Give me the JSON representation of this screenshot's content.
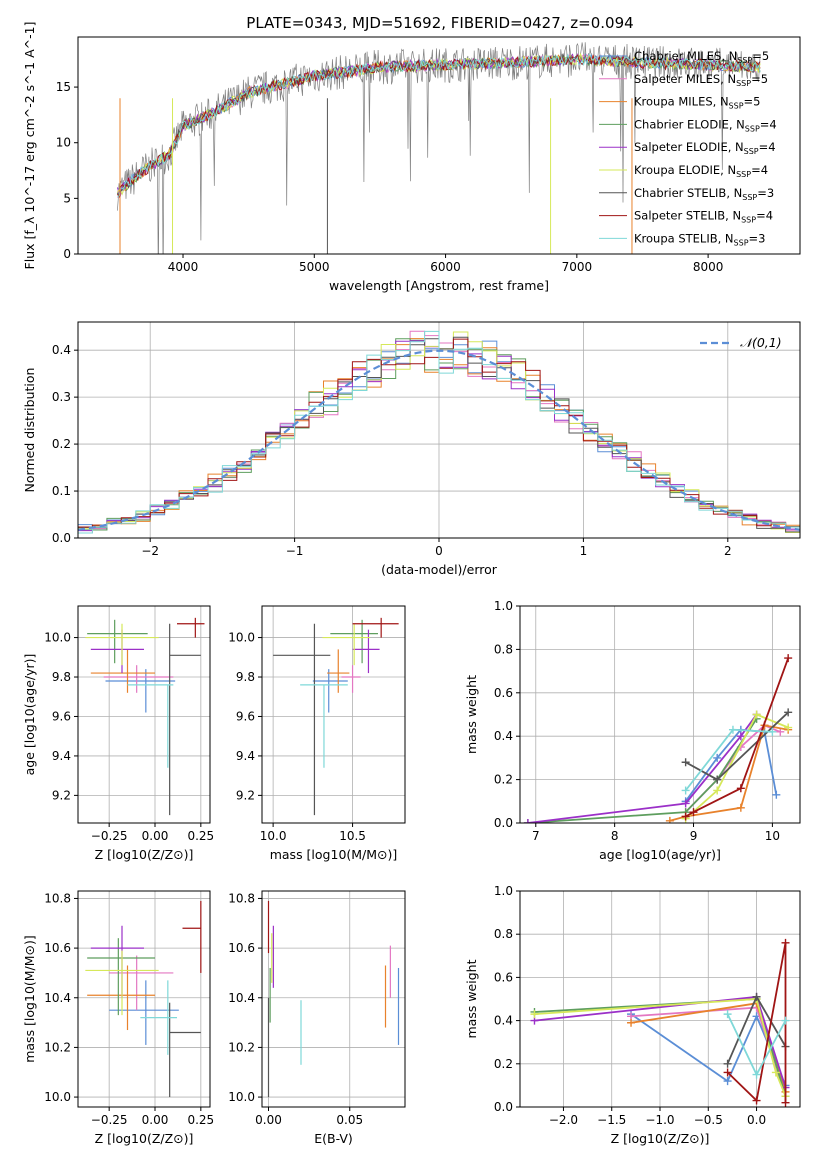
{
  "figure_title": "PLATE=0343, MJD=51692, FIBERID=0427, z=0.094",
  "colors": {
    "Chabrier MILES": "#5b8ed6",
    "Salpeter MILES": "#e377c2",
    "Kroupa MILES": "#e8822c",
    "Chabrier ELODIE": "#5e9e5e",
    "Salpeter ELODIE": "#9b30c8",
    "Kroupa ELODIE": "#d6e85a",
    "Chabrier STELIB": "#555555",
    "Salpeter STELIB": "#a01515",
    "Kroupa STELIB": "#7fd8d8",
    "gaussian": "#5b8ed6"
  },
  "chart_data": [
    {
      "id": "spectrum",
      "type": "line",
      "title": "PLATE=0343, MJD=51692, FIBERID=0427, z=0.094",
      "xlabel": "wavelength [Angstrom, rest frame]",
      "ylabel": "Flux [f_λ 10^-17 erg cm^-2 s^-1 A^-1]",
      "xlim": [
        3200,
        8700
      ],
      "ylim": [
        0,
        19.5
      ],
      "xticks": [
        4000,
        5000,
        6000,
        7000,
        8000
      ],
      "yticks": [
        0,
        5,
        10,
        15
      ],
      "grid": false,
      "legend_position": "top-right",
      "legend": [
        "Chabrier MILES, N_SSP=5",
        "Salpeter MILES, N_SSP=5",
        "Kroupa MILES, N_SSP=5",
        "Chabrier ELODIE, N_SSP=4",
        "Salpeter ELODIE, N_SSP=4",
        "Kroupa ELODIE, N_SSP=4",
        "Chabrier STELIB, N_SSP=3",
        "Salpeter STELIB, N_SSP=4",
        "Kroupa STELIB, N_SSP=3"
      ],
      "continuum": {
        "x": [
          3500,
          3700,
          3900,
          4000,
          4200,
          4500,
          5000,
          5500,
          6000,
          6500,
          7000,
          7500,
          8000,
          8400
        ],
        "y": [
          5.5,
          7.5,
          9.0,
          11.5,
          12.5,
          14.5,
          16.0,
          16.8,
          17.0,
          17.2,
          17.5,
          17.2,
          17.0,
          16.8
        ]
      }
    },
    {
      "id": "residuals",
      "type": "histogram",
      "xlabel": "(data-model)/error",
      "ylabel": "Normed distribution",
      "xlim": [
        -2.5,
        2.5
      ],
      "ylim": [
        0,
        0.46
      ],
      "xticks": [
        -2,
        -1,
        0,
        1,
        2
      ],
      "yticks": [
        0.0,
        0.1,
        0.2,
        0.3,
        0.4
      ],
      "grid": true,
      "legend_position": "top-right",
      "legend": [
        "𝒩(0,1)"
      ],
      "bin_width": 0.1,
      "curve": "standard normal density"
    },
    {
      "id": "age-vs-Z",
      "type": "errorbar",
      "xlabel": "Z [log10(Z/Z⊙)]",
      "ylabel": "age [log10(age/yr)]",
      "xlim": [
        -0.42,
        0.3
      ],
      "ylim": [
        9.06,
        10.16
      ],
      "xticks": [
        -0.25,
        0.0,
        0.25
      ],
      "yticks": [
        9.2,
        9.4,
        9.6,
        9.8,
        10.0
      ],
      "grid": true,
      "points": [
        {
          "model": "Chabrier MILES",
          "x": -0.05,
          "xerr": [
            0.22,
            0.16
          ],
          "y": 9.78,
          "yerr": [
            0.16,
            0.06
          ]
        },
        {
          "model": "Salpeter MILES",
          "x": -0.1,
          "xerr": [
            0.18,
            0.2
          ],
          "y": 9.8,
          "yerr": [
            0.08,
            0.06
          ]
        },
        {
          "model": "Kroupa MILES",
          "x": -0.15,
          "xerr": [
            0.2,
            0.15
          ],
          "y": 9.82,
          "yerr": [
            0.1,
            0.12
          ]
        },
        {
          "model": "Chabrier ELODIE",
          "x": -0.22,
          "xerr": [
            0.15,
            0.18
          ],
          "y": 10.02,
          "yerr": [
            0.15,
            0.07
          ]
        },
        {
          "model": "Salpeter ELODIE",
          "x": -0.18,
          "xerr": [
            0.17,
            0.12
          ],
          "y": 9.94,
          "yerr": [
            0.12,
            0.1
          ]
        },
        {
          "model": "Kroupa ELODIE",
          "x": -0.18,
          "xerr": [
            0.2,
            0.2
          ],
          "y": 10.0,
          "yerr": [
            0.14,
            0.07
          ]
        },
        {
          "model": "Chabrier STELIB",
          "x": 0.08,
          "xerr": [
            0.0,
            0.17
          ],
          "y": 9.91,
          "yerr": [
            0.81,
            0.16
          ]
        },
        {
          "model": "Salpeter STELIB",
          "x": 0.22,
          "xerr": [
            0.1,
            0.05
          ],
          "y": 10.07,
          "yerr": [
            0.07,
            0.03
          ]
        },
        {
          "model": "Kroupa STELIB",
          "x": 0.07,
          "xerr": [
            0.22,
            0.03
          ],
          "y": 9.76,
          "yerr": [
            0.42,
            0.0
          ]
        }
      ]
    },
    {
      "id": "age-vs-mass",
      "type": "errorbar",
      "xlabel": "mass [log10(M/M⊙)]",
      "ylabel": "",
      "xlim": [
        9.93,
        10.83
      ],
      "ylim": [
        9.06,
        10.16
      ],
      "xticks": [
        10.0,
        10.5
      ],
      "yticks": [
        9.2,
        9.4,
        9.6,
        9.8,
        10.0
      ],
      "grid": true,
      "points": [
        {
          "model": "Chabrier MILES",
          "x": 10.35,
          "xerr": [
            0.1,
            0.12
          ],
          "y": 9.78,
          "yerr": [
            0.16,
            0.06
          ]
        },
        {
          "model": "Salpeter MILES",
          "x": 10.5,
          "xerr": [
            0.07,
            0.05
          ],
          "y": 9.8,
          "yerr": [
            0.08,
            0.06
          ]
        },
        {
          "model": "Kroupa MILES",
          "x": 10.41,
          "xerr": [
            0.07,
            0.07
          ],
          "y": 9.82,
          "yerr": [
            0.1,
            0.12
          ]
        },
        {
          "model": "Chabrier ELODIE",
          "x": 10.56,
          "xerr": [
            0.2,
            0.1
          ],
          "y": 10.02,
          "yerr": [
            0.15,
            0.07
          ]
        },
        {
          "model": "Salpeter ELODIE",
          "x": 10.6,
          "xerr": [
            0.1,
            0.07
          ],
          "y": 9.94,
          "yerr": [
            0.12,
            0.1
          ]
        },
        {
          "model": "Kroupa ELODIE",
          "x": 10.51,
          "xerr": [
            0.2,
            0.1
          ],
          "y": 10.0,
          "yerr": [
            0.14,
            0.07
          ]
        },
        {
          "model": "Chabrier STELIB",
          "x": 10.26,
          "xerr": [
            0.26,
            0.1
          ],
          "y": 9.91,
          "yerr": [
            0.81,
            0.16
          ]
        },
        {
          "model": "Salpeter STELIB",
          "x": 10.68,
          "xerr": [
            0.18,
            0.11
          ],
          "y": 10.07,
          "yerr": [
            0.07,
            0.03
          ]
        },
        {
          "model": "Kroupa STELIB",
          "x": 10.32,
          "xerr": [
            0.15,
            0.15
          ],
          "y": 9.76,
          "yerr": [
            0.42,
            0.0
          ]
        }
      ]
    },
    {
      "id": "mass-weight-vs-age",
      "type": "line",
      "xlabel": "age [log10(age/yr)]",
      "ylabel": "mass weight",
      "xlim": [
        6.8,
        10.35
      ],
      "ylim": [
        0,
        1
      ],
      "xticks": [
        7,
        8,
        9,
        10
      ],
      "yticks": [
        0.0,
        0.2,
        0.4,
        0.6,
        0.8,
        1.0
      ],
      "grid": true,
      "series": [
        {
          "model": "Chabrier MILES",
          "x": [
            8.9,
            9.3,
            9.6,
            9.9,
            10.05
          ],
          "y": [
            0.1,
            0.3,
            0.43,
            0.42,
            0.13
          ]
        },
        {
          "model": "Salpeter MILES",
          "x": [
            8.9,
            9.3,
            9.6,
            9.9,
            10.1
          ],
          "y": [
            0.05,
            0.2,
            0.35,
            0.45,
            0.42
          ]
        },
        {
          "model": "Kroupa MILES",
          "x": [
            8.7,
            8.9,
            9.6,
            9.9,
            10.2
          ],
          "y": [
            0.01,
            0.03,
            0.07,
            0.45,
            0.43
          ]
        },
        {
          "model": "Chabrier ELODIE",
          "x": [
            6.9,
            8.9,
            9.3,
            9.8
          ],
          "y": [
            0.0,
            0.05,
            0.2,
            0.48
          ]
        },
        {
          "model": "Salpeter ELODIE",
          "x": [
            6.9,
            8.9,
            9.6,
            9.8
          ],
          "y": [
            0.0,
            0.09,
            0.4,
            0.5
          ]
        },
        {
          "model": "Kroupa ELODIE",
          "x": [
            8.9,
            9.3,
            9.8,
            10.2
          ],
          "y": [
            0.02,
            0.15,
            0.5,
            0.44
          ]
        },
        {
          "model": "Chabrier STELIB",
          "x": [
            8.9,
            9.3,
            10.2
          ],
          "y": [
            0.28,
            0.2,
            0.51
          ]
        },
        {
          "model": "Salpeter STELIB",
          "x": [
            8.9,
            9.0,
            9.6,
            10.2
          ],
          "y": [
            0.03,
            0.05,
            0.16,
            0.76
          ]
        },
        {
          "model": "Kroupa STELIB",
          "x": [
            8.9,
            9.5,
            10.0
          ],
          "y": [
            0.15,
            0.43,
            0.42
          ]
        }
      ]
    },
    {
      "id": "mass-vs-Z",
      "type": "errorbar",
      "xlabel": "Z [log10(Z/Z⊙)]",
      "ylabel": "mass [log10(M/M⊙)]",
      "xlim": [
        -0.42,
        0.3
      ],
      "ylim": [
        9.96,
        10.83
      ],
      "xticks": [
        -0.25,
        0.0,
        0.25
      ],
      "yticks": [
        10.0,
        10.2,
        10.4,
        10.6,
        10.8
      ],
      "grid": true,
      "points": [
        {
          "model": "Chabrier MILES",
          "x": -0.05,
          "xerr": [
            0.2,
            0.18
          ],
          "y": 10.35,
          "yerr": [
            0.14,
            0.12
          ]
        },
        {
          "model": "Salpeter MILES",
          "x": -0.1,
          "xerr": [
            0.15,
            0.2
          ],
          "y": 10.5,
          "yerr": [
            0.15,
            0.07
          ]
        },
        {
          "model": "Kroupa MILES",
          "x": -0.15,
          "xerr": [
            0.22,
            0.15
          ],
          "y": 10.41,
          "yerr": [
            0.14,
            0.12
          ]
        },
        {
          "model": "Chabrier ELODIE",
          "x": -0.2,
          "xerr": [
            0.17,
            0.2
          ],
          "y": 10.56,
          "yerr": [
            0.23,
            0.08
          ]
        },
        {
          "model": "Salpeter ELODIE",
          "x": -0.18,
          "xerr": [
            0.17,
            0.12
          ],
          "y": 10.6,
          "yerr": [
            0.2,
            0.09
          ]
        },
        {
          "model": "Kroupa ELODIE",
          "x": -0.18,
          "xerr": [
            0.2,
            0.2
          ],
          "y": 10.51,
          "yerr": [
            0.18,
            0.08
          ]
        },
        {
          "model": "Chabrier STELIB",
          "x": 0.08,
          "xerr": [
            0.0,
            0.17
          ],
          "y": 10.26,
          "yerr": [
            0.26,
            0.12
          ]
        },
        {
          "model": "Salpeter STELIB",
          "x": 0.25,
          "xerr": [
            0.1,
            0.0
          ],
          "y": 10.68,
          "yerr": [
            0.18,
            0.11
          ]
        },
        {
          "model": "Kroupa STELIB",
          "x": 0.07,
          "xerr": [
            0.15,
            0.05
          ],
          "y": 10.32,
          "yerr": [
            0.15,
            0.15
          ]
        }
      ]
    },
    {
      "id": "mass-vs-EBV",
      "type": "errorbar",
      "xlabel": "E(B-V)",
      "ylabel": "",
      "xlim": [
        -0.004,
        0.084
      ],
      "ylim": [
        9.96,
        10.83
      ],
      "xticks": [
        0.0,
        0.05
      ],
      "yticks": [
        10.0,
        10.2,
        10.4,
        10.6,
        10.8
      ],
      "grid": true,
      "points": [
        {
          "model": "Chabrier MILES",
          "x": 0.08,
          "y": 10.35,
          "yerr": [
            0.14,
            0.17
          ]
        },
        {
          "model": "Salpeter MILES",
          "x": 0.075,
          "y": 10.5,
          "yerr": [
            0.1,
            0.11
          ]
        },
        {
          "model": "Kroupa MILES",
          "x": 0.072,
          "y": 10.4,
          "yerr": [
            0.12,
            0.13
          ]
        },
        {
          "model": "Chabrier ELODIE",
          "x": 0.001,
          "y": 10.4,
          "yerr": [
            0.1,
            0.12
          ]
        },
        {
          "model": "Salpeter ELODIE",
          "x": 0.003,
          "y": 10.55,
          "yerr": [
            0.11,
            0.14
          ]
        },
        {
          "model": "Kroupa ELODIE",
          "x": 0.002,
          "y": 10.56,
          "yerr": [
            0.1,
            0.1
          ]
        },
        {
          "model": "Chabrier STELIB",
          "x": 0.0,
          "y": 10.2,
          "yerr": [
            0.2,
            0.2
          ]
        },
        {
          "model": "Salpeter STELIB",
          "x": 0.0,
          "y": 10.68,
          "yerr": [
            0.1,
            0.11
          ]
        },
        {
          "model": "Kroupa STELIB",
          "x": 0.02,
          "y": 10.26,
          "yerr": [
            0.13,
            0.13
          ]
        }
      ]
    },
    {
      "id": "mass-weight-vs-Z",
      "type": "line",
      "xlabel": "Z [log10(Z/Z⊙)]",
      "ylabel": "mass weight",
      "xlim": [
        -2.45,
        0.45
      ],
      "ylim": [
        0,
        1
      ],
      "xticks": [
        -2.0,
        -1.5,
        -1.0,
        -0.5,
        0.0
      ],
      "yticks": [
        0.0,
        0.2,
        0.4,
        0.6,
        0.8,
        1.0
      ],
      "grid": true,
      "series": [
        {
          "model": "Chabrier MILES",
          "x": [
            -1.3,
            -0.3,
            0.0,
            0.3
          ],
          "y": [
            0.43,
            0.12,
            0.42,
            0.1
          ]
        },
        {
          "model": "Salpeter MILES",
          "x": [
            -1.3,
            0.0,
            0.3
          ],
          "y": [
            0.42,
            0.46,
            0.05
          ]
        },
        {
          "model": "Kroupa MILES",
          "x": [
            -1.3,
            0.0,
            0.3
          ],
          "y": [
            0.39,
            0.48,
            0.07
          ]
        },
        {
          "model": "Chabrier ELODIE",
          "x": [
            -2.3,
            0.0,
            0.3
          ],
          "y": [
            0.44,
            0.5,
            0.05
          ]
        },
        {
          "model": "Salpeter ELODIE",
          "x": [
            -2.3,
            0.0,
            0.3
          ],
          "y": [
            0.4,
            0.51,
            0.09
          ]
        },
        {
          "model": "Kroupa ELODIE",
          "x": [
            -2.3,
            0.0,
            0.2,
            0.3
          ],
          "y": [
            0.43,
            0.5,
            0.16,
            0.05
          ]
        },
        {
          "model": "Chabrier STELIB",
          "x": [
            -0.3,
            0.0,
            0.3
          ],
          "y": [
            0.2,
            0.51,
            0.28
          ]
        },
        {
          "model": "Salpeter STELIB",
          "x": [
            -0.3,
            0.0,
            0.3,
            0.3
          ],
          "y": [
            0.16,
            0.03,
            0.76,
            0.02
          ]
        },
        {
          "model": "Kroupa STELIB",
          "x": [
            -0.3,
            0.0,
            0.3
          ],
          "y": [
            0.43,
            0.15,
            0.4
          ]
        }
      ]
    }
  ]
}
